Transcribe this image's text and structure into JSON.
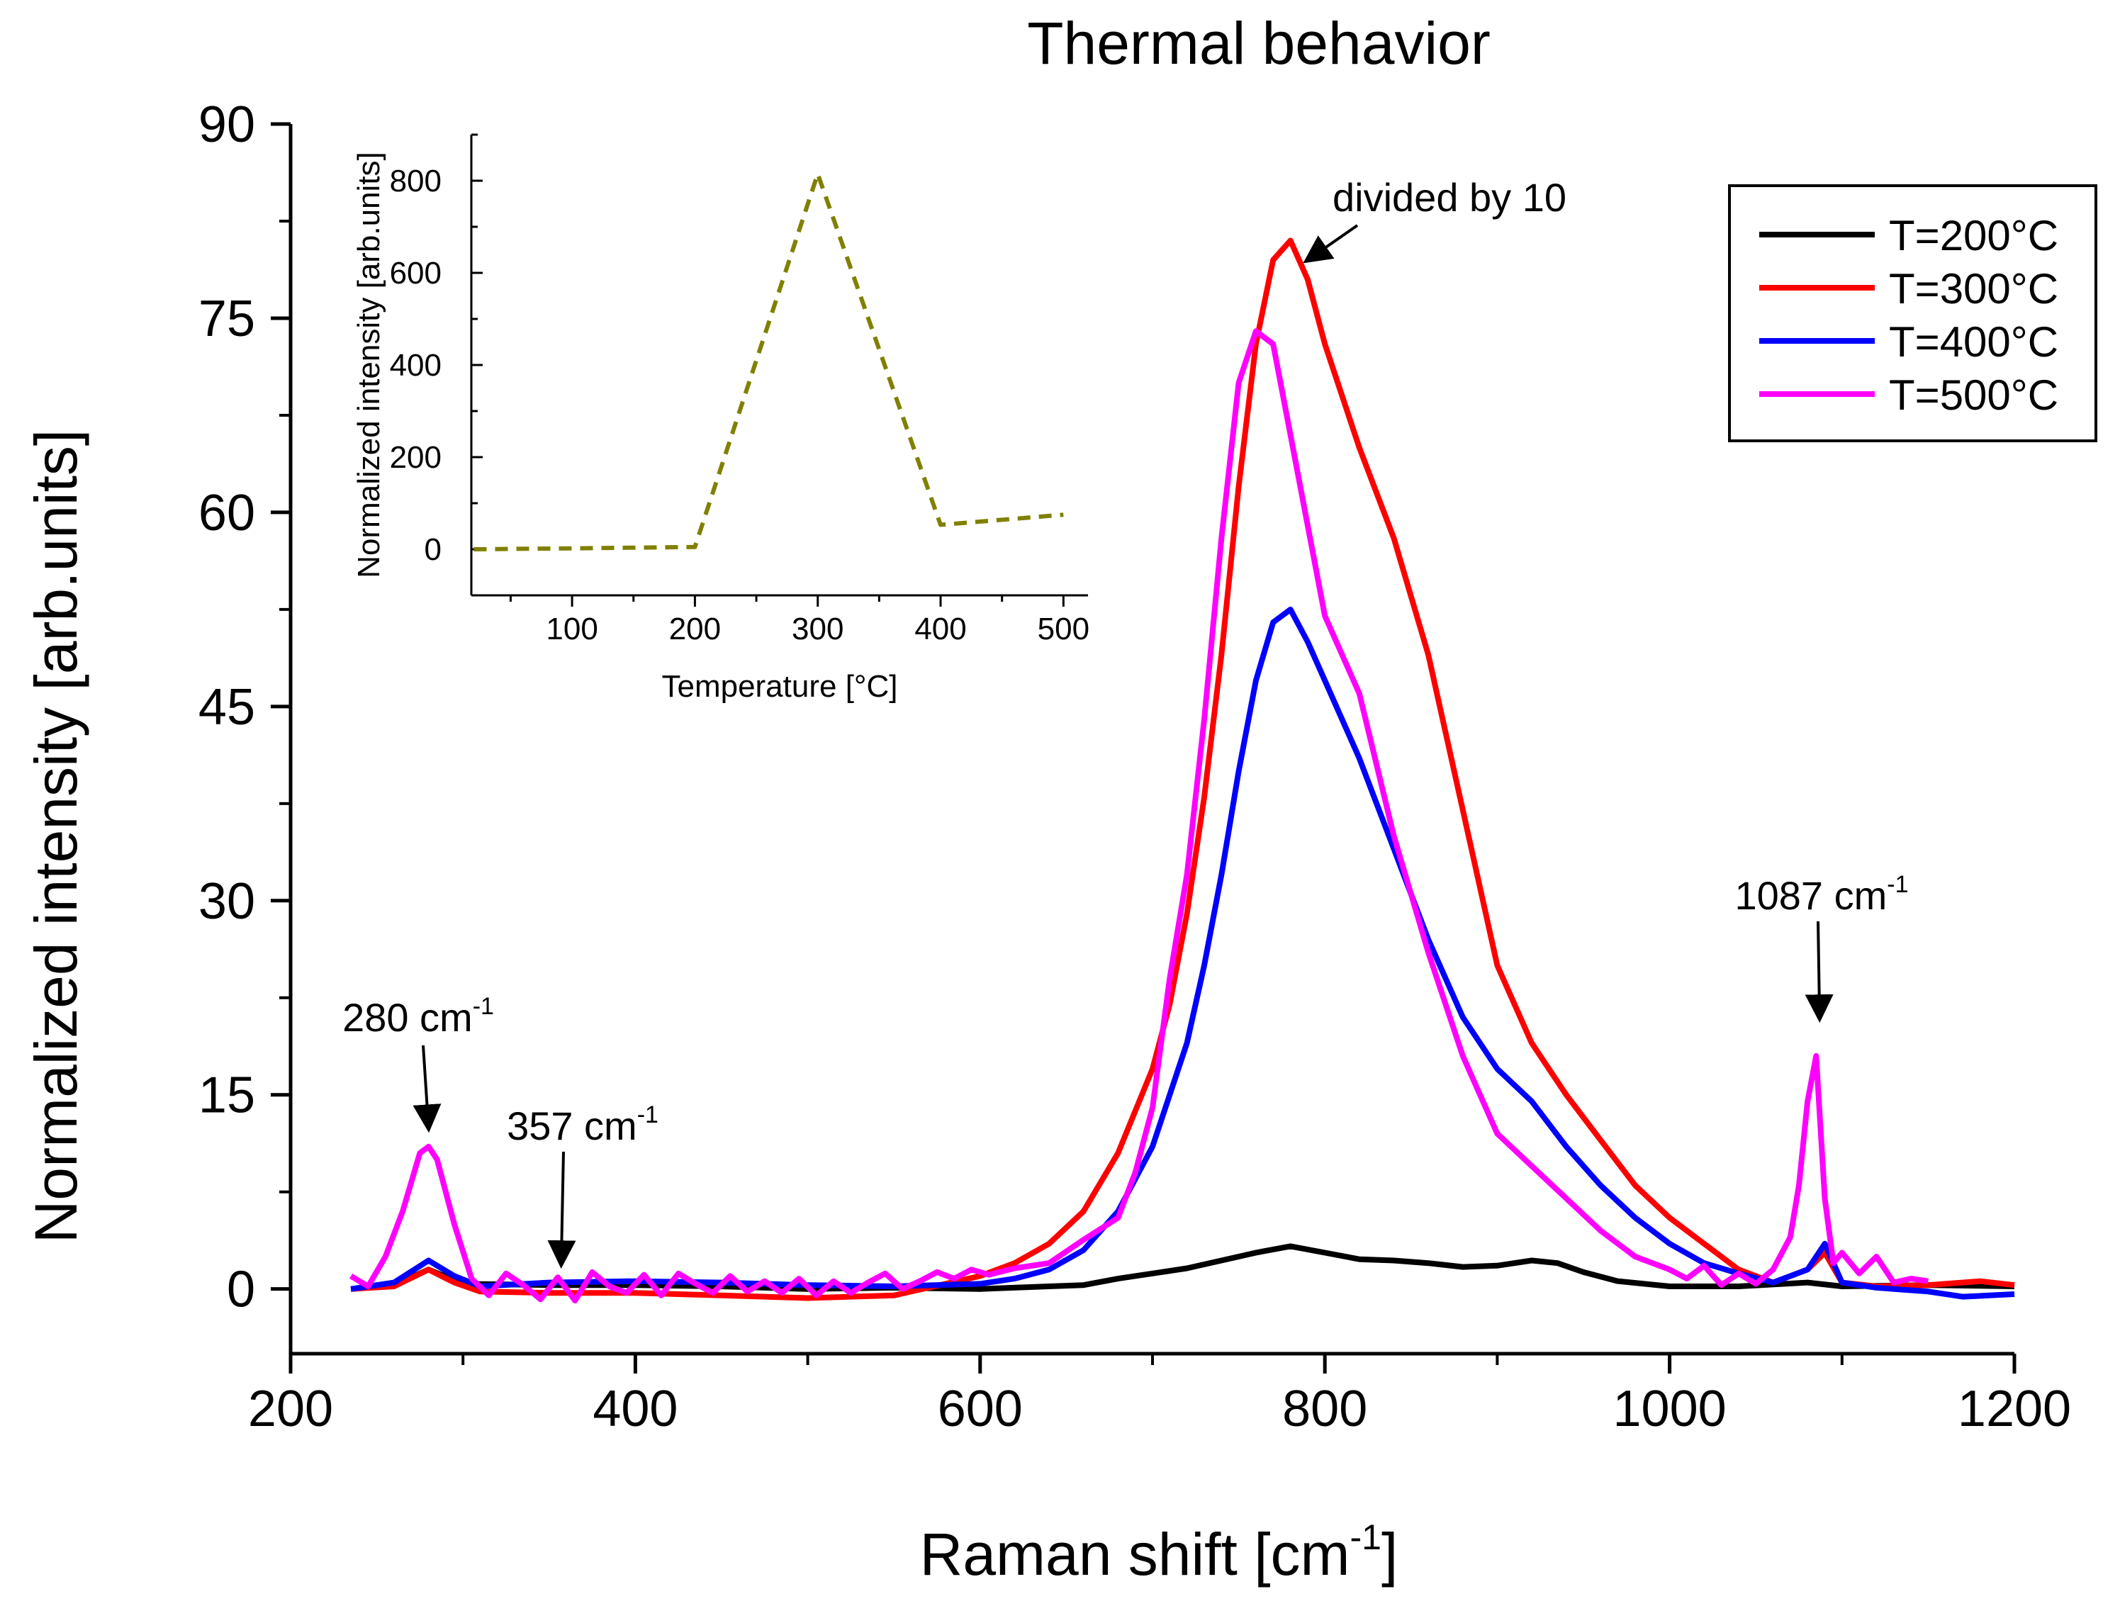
{
  "chart_data": {
    "type": "line",
    "title": "Thermal behavior",
    "xlabel": "Raman shift [cm",
    "xlabel_sup": "-1",
    "xlabel_suffix": "]",
    "ylabel": "Normalized intensity [arb.units]",
    "xlim": [
      200,
      1200
    ],
    "ylim": [
      -5,
      90
    ],
    "xticks": [
      200,
      400,
      600,
      800,
      1000,
      1200
    ],
    "yticks": [
      0,
      15,
      30,
      45,
      60,
      75,
      90
    ],
    "legend_position": "top-right",
    "series": [
      {
        "name": "T=200°C",
        "color": "#000000",
        "x": [
          235,
          260,
          280,
          300,
          350,
          400,
          450,
          500,
          550,
          600,
          640,
          660,
          680,
          700,
          720,
          740,
          760,
          780,
          800,
          820,
          840,
          860,
          880,
          900,
          920,
          935,
          950,
          970,
          1000,
          1040,
          1080,
          1100,
          1150,
          1200
        ],
        "y": [
          0,
          0.3,
          1.5,
          0.4,
          0.3,
          0.3,
          0.2,
          0,
          0.1,
          0,
          0.2,
          0.3,
          0.8,
          1.2,
          1.6,
          2.2,
          2.8,
          3.3,
          2.8,
          2.3,
          2.2,
          2.0,
          1.7,
          1.8,
          2.2,
          2.0,
          1.3,
          0.6,
          0.2,
          0.2,
          0.5,
          0.2,
          0.3,
          0.2
        ]
      },
      {
        "name": "T=300°C",
        "color": "#ff0000",
        "x": [
          235,
          260,
          280,
          295,
          310,
          350,
          400,
          450,
          500,
          550,
          600,
          620,
          640,
          660,
          680,
          700,
          710,
          720,
          730,
          740,
          750,
          760,
          770,
          780,
          790,
          800,
          820,
          840,
          860,
          880,
          900,
          920,
          940,
          960,
          980,
          1000,
          1020,
          1040,
          1060,
          1080,
          1090,
          1100,
          1120,
          1150,
          1180,
          1200
        ],
        "y": [
          0,
          0.2,
          1.5,
          0.5,
          -0.2,
          -0.3,
          -0.3,
          -0.5,
          -0.7,
          -0.5,
          1.0,
          2.0,
          3.5,
          6.0,
          10.5,
          17.0,
          22.0,
          29.0,
          38.0,
          49.0,
          62.0,
          73.0,
          79.5,
          81.0,
          78.0,
          73.0,
          65.0,
          58.0,
          49.0,
          37.0,
          25.0,
          19.0,
          15.0,
          11.5,
          8.0,
          5.5,
          3.5,
          1.5,
          0.5,
          1.5,
          2.8,
          0.5,
          0.2,
          0.3,
          0.6,
          0.3
        ]
      },
      {
        "name": "T=400°C",
        "color": "#0000ff",
        "x": [
          235,
          260,
          280,
          295,
          310,
          350,
          400,
          450,
          500,
          550,
          600,
          620,
          640,
          660,
          680,
          700,
          710,
          720,
          730,
          740,
          750,
          760,
          770,
          780,
          790,
          800,
          820,
          840,
          860,
          880,
          900,
          920,
          940,
          960,
          980,
          1000,
          1020,
          1040,
          1060,
          1080,
          1090,
          1100,
          1120,
          1150,
          1170,
          1200
        ],
        "y": [
          0,
          0.5,
          2.2,
          1.0,
          0.2,
          0.5,
          0.6,
          0.5,
          0.3,
          0.2,
          0.4,
          0.8,
          1.5,
          3.0,
          6.0,
          11.0,
          15.0,
          19.0,
          25.0,
          32.0,
          40.0,
          47.0,
          51.5,
          52.5,
          50.0,
          47.0,
          41.0,
          34.0,
          27.0,
          21.0,
          17.0,
          14.5,
          11.0,
          8.0,
          5.5,
          3.5,
          2.0,
          1.2,
          0.5,
          1.5,
          3.5,
          0.5,
          0.1,
          -0.2,
          -0.6,
          -0.4
        ]
      },
      {
        "name": "T=500°C",
        "color": "#ff00ff",
        "x": [
          235,
          245,
          255,
          265,
          275,
          280,
          285,
          295,
          305,
          315,
          325,
          335,
          345,
          355,
          365,
          375,
          385,
          395,
          405,
          415,
          425,
          435,
          445,
          455,
          465,
          475,
          485,
          495,
          505,
          515,
          525,
          535,
          545,
          555,
          565,
          575,
          585,
          595,
          605,
          620,
          640,
          660,
          680,
          690,
          700,
          710,
          720,
          730,
          740,
          750,
          760,
          770,
          780,
          790,
          800,
          820,
          840,
          860,
          880,
          900,
          920,
          940,
          960,
          980,
          1000,
          1010,
          1020,
          1030,
          1040,
          1050,
          1060,
          1070,
          1075,
          1080,
          1085,
          1090,
          1095,
          1100,
          1110,
          1120,
          1130,
          1140,
          1150
        ],
        "y": [
          1.0,
          0.2,
          2.5,
          6.0,
          10.5,
          11.0,
          10.0,
          5.0,
          0.8,
          -0.5,
          1.2,
          0.3,
          -0.8,
          0.9,
          -0.9,
          1.3,
          0.2,
          -0.3,
          1.1,
          -0.5,
          1.2,
          0.4,
          -0.3,
          1.0,
          -0.2,
          0.6,
          -0.3,
          0.8,
          -0.5,
          0.6,
          -0.3,
          0.5,
          1.2,
          0.0,
          0.6,
          1.3,
          0.8,
          1.5,
          1.1,
          1.6,
          2.0,
          3.8,
          5.5,
          9.0,
          14.0,
          24.0,
          32.0,
          44.0,
          58.0,
          70.0,
          74.0,
          73.0,
          66.0,
          59.0,
          52.0,
          46.0,
          35.0,
          26.0,
          18.0,
          12.0,
          9.5,
          7.0,
          4.5,
          2.5,
          1.5,
          0.8,
          1.8,
          0.3,
          1.2,
          0.4,
          1.5,
          4.0,
          8.0,
          14.5,
          18.0,
          7.0,
          2.0,
          2.8,
          1.2,
          2.5,
          0.5,
          0.8,
          0.6
        ]
      }
    ],
    "annotations": [
      {
        "id": "ann-280",
        "text": "280 cm",
        "sup": "-1",
        "arrow_x": 280,
        "arrow_y": 12.5
      },
      {
        "id": "ann-357",
        "text": "357 cm",
        "sup": "-1",
        "arrow_x": 357,
        "arrow_y": 2.0
      },
      {
        "id": "ann-1087",
        "text": "1087 cm",
        "sup": "-1",
        "arrow_x": 1087,
        "arrow_y": 21.0
      },
      {
        "id": "ann-div10",
        "text": "divided by 10",
        "sup": "",
        "arrow_x": 790,
        "arrow_y": 79.5
      }
    ],
    "inset": {
      "type": "line",
      "line_style": "dashed",
      "color": "#808000",
      "xlabel": "Temperature [°C]",
      "ylabel": "Normalized intensity [arb.units]",
      "xlim": [
        18,
        520
      ],
      "ylim": [
        -100,
        900
      ],
      "xticks": [
        100,
        200,
        300,
        400,
        500
      ],
      "yticks": [
        0,
        200,
        400,
        600,
        800
      ],
      "x": [
        20,
        100,
        200,
        300,
        400,
        500
      ],
      "y": [
        0,
        2,
        5,
        815,
        53,
        75
      ]
    }
  }
}
